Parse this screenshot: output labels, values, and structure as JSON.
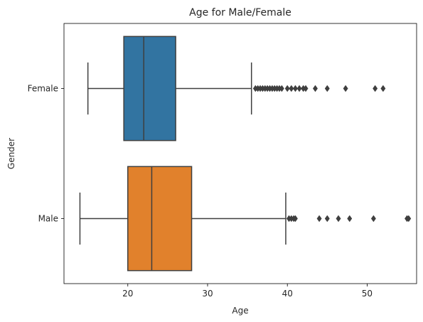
{
  "chart_data": {
    "type": "boxplot",
    "orientation": "horizontal",
    "title": "Age for Male/Female",
    "xlabel": "Age",
    "ylabel": "Gender",
    "xlim": [
      12.0,
      56.2
    ],
    "xticks": [
      20,
      30,
      40,
      50
    ],
    "grid": false,
    "categories": [
      "Female",
      "Male"
    ],
    "series": [
      {
        "name": "Female",
        "color": "#3274a1",
        "whisker_low": 15,
        "q1": 19.5,
        "median": 22,
        "q3": 26,
        "whisker_high": 35.5,
        "outliers": [
          36,
          36.3,
          36.6,
          36.9,
          37.2,
          37.5,
          37.8,
          38.1,
          38.4,
          38.7,
          39,
          39.3,
          40,
          40.5,
          41,
          41.5,
          42,
          42.3,
          43.5,
          45,
          47.3,
          51,
          52
        ]
      },
      {
        "name": "Male",
        "color": "#e1812c",
        "whisker_low": 14,
        "q1": 20,
        "median": 23,
        "q3": 28,
        "whisker_high": 39.8,
        "outliers": [
          40.2,
          40.5,
          40.8,
          41,
          44,
          45,
          46.4,
          47.8,
          50.8,
          55,
          55.2
        ]
      }
    ],
    "colors": {
      "box_edge": "#3f3f3f",
      "axis": "#000000",
      "outlier": "#3f3f3f"
    }
  }
}
